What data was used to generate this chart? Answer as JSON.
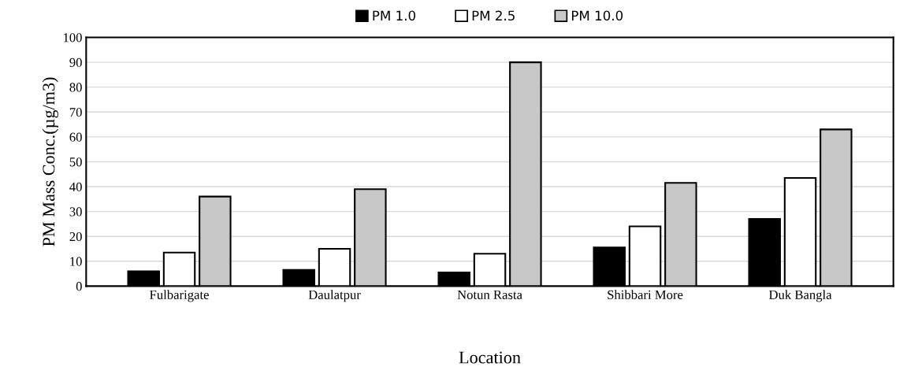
{
  "chart_data": {
    "type": "bar",
    "xlabel": "Location",
    "ylabel": "PM Mass Conc.(µg/m3)",
    "categories": [
      "Fulbarigate",
      "Daulatpur",
      "Notun Rasta",
      "Shibbari More",
      "Duk Bangla"
    ],
    "series": [
      {
        "name": "PM 1.0",
        "color": "#000000",
        "values": [
          6,
          6.5,
          5.5,
          15.5,
          27
        ]
      },
      {
        "name": "PM 2.5",
        "color": "#ffffff",
        "values": [
          13.5,
          15,
          13,
          24,
          43.5
        ]
      },
      {
        "name": "PM 10.0",
        "color": "#c8c8c8",
        "values": [
          36,
          39,
          90,
          41.5,
          63
        ]
      }
    ],
    "ylim": [
      0,
      100
    ],
    "yticks": [
      0,
      10,
      20,
      30,
      40,
      50,
      60,
      70,
      80,
      90,
      100
    ],
    "grid": "y",
    "legend": "top"
  }
}
